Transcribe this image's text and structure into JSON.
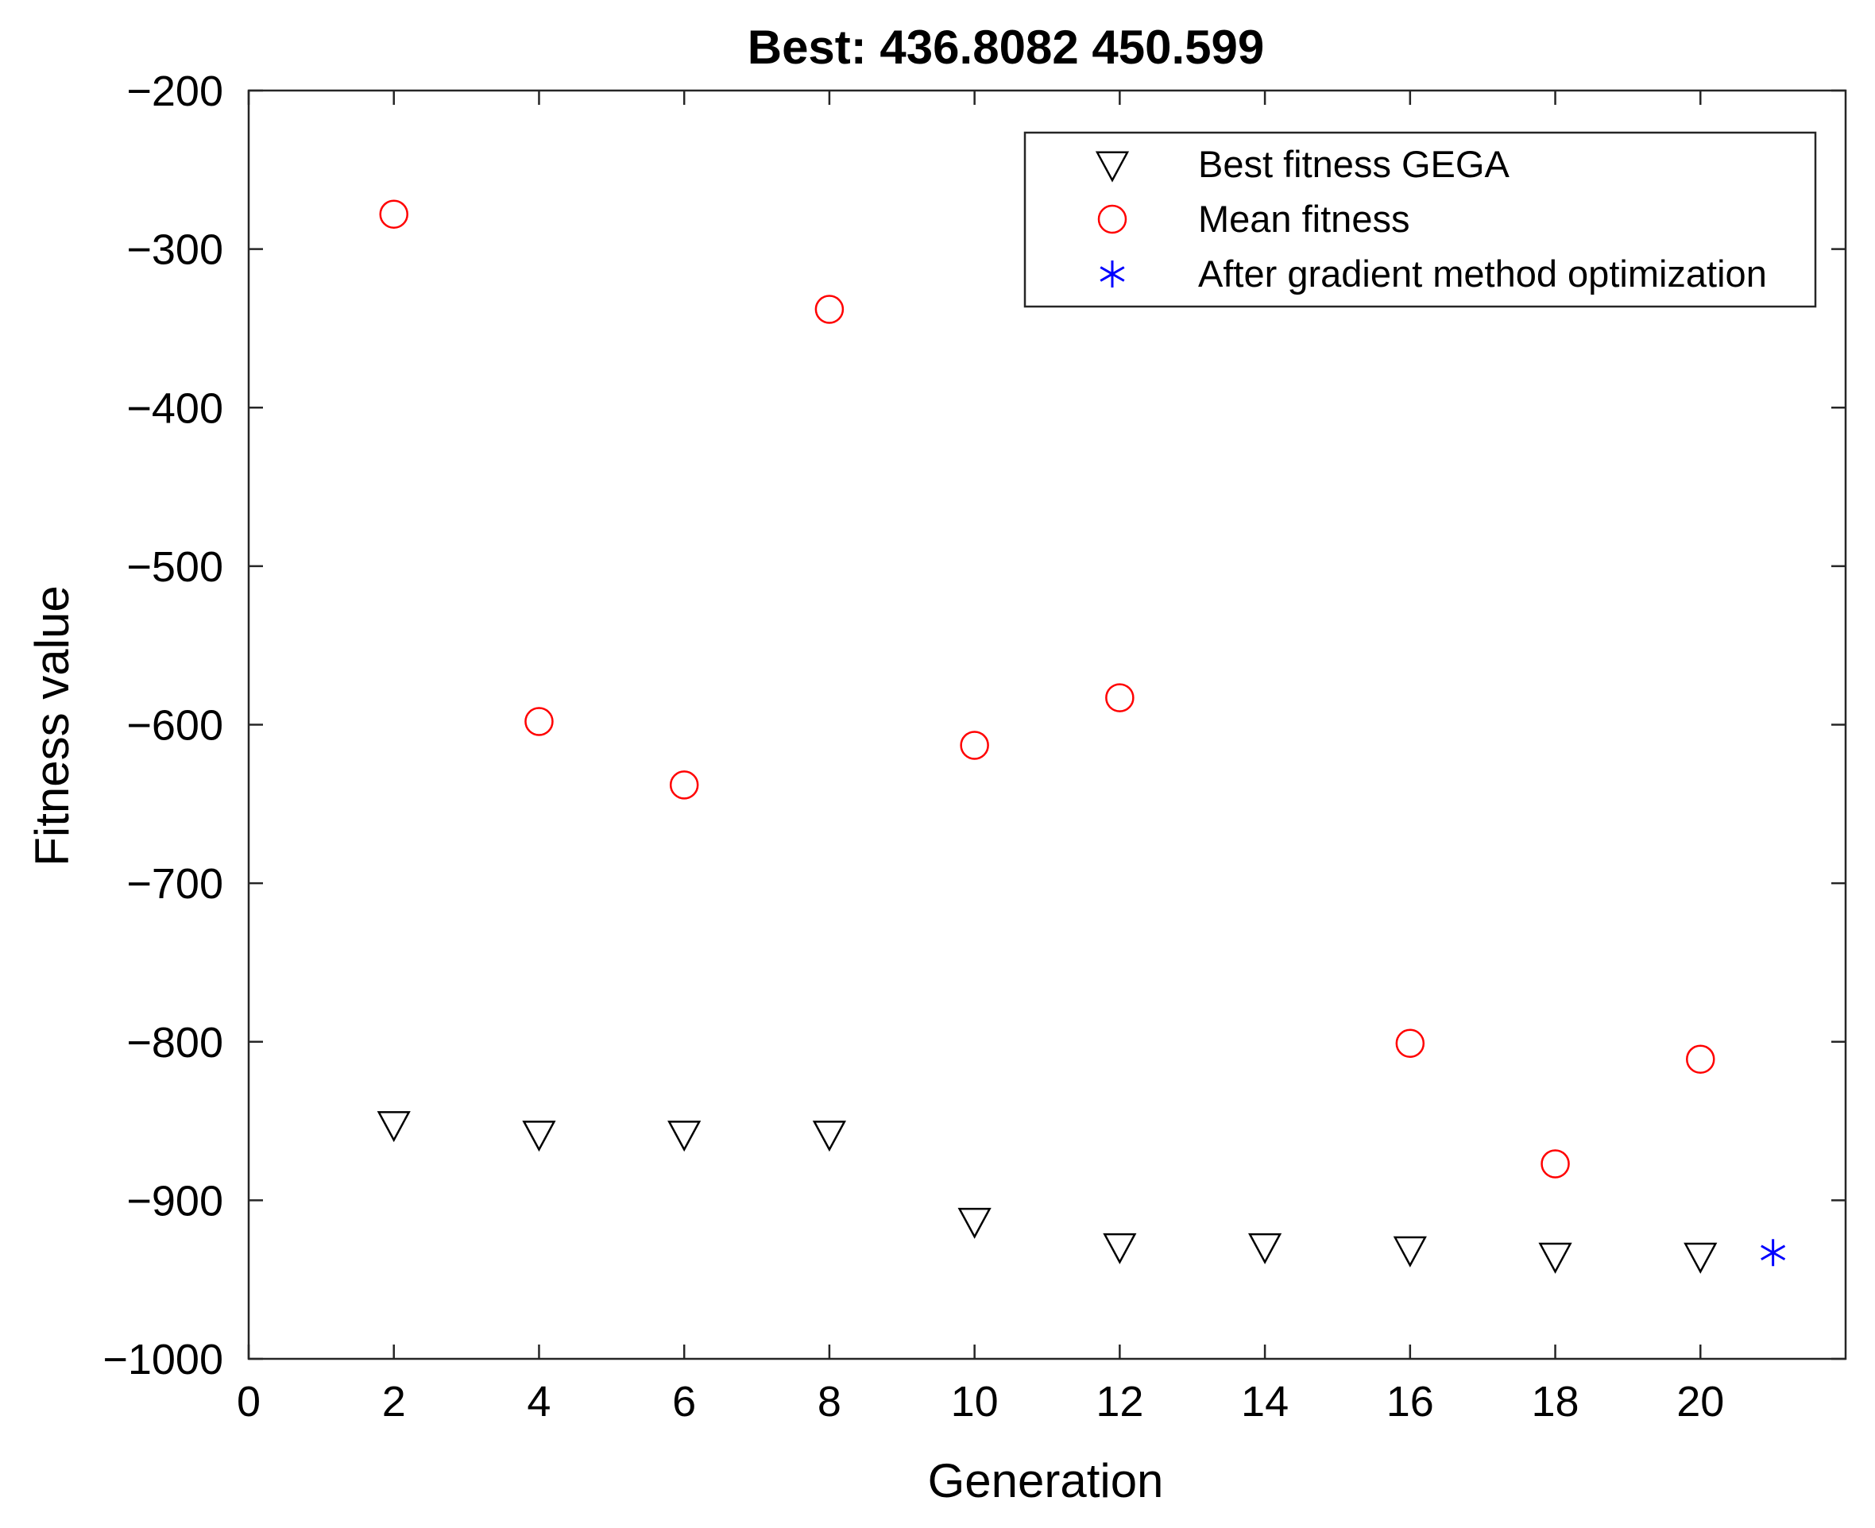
{
  "chart_data": {
    "type": "scatter",
    "title": "Best: 436.8082 450.599",
    "xlabel": "Generation",
    "ylabel": "Fitness value",
    "xlim": [
      0,
      22
    ],
    "ylim": [
      -1000,
      -200
    ],
    "xticks": [
      0,
      2,
      4,
      6,
      8,
      10,
      12,
      14,
      16,
      18,
      20
    ],
    "yticks": [
      -200,
      -300,
      -400,
      -500,
      -600,
      -700,
      -800,
      -900,
      -1000
    ],
    "xtick_labels": [
      "0",
      "2",
      "4",
      "6",
      "8",
      "10",
      "12",
      "14",
      "16",
      "18",
      "20"
    ],
    "ytick_labels": [
      "−200",
      "−300",
      "−400",
      "−500",
      "−600",
      "−700",
      "−800",
      "−900",
      "−1000"
    ],
    "grid": false,
    "legend_position": "top-right",
    "series": [
      {
        "name": "Best fitness GEGA",
        "marker": "triangle-down",
        "color": "#000000",
        "x": [
          2,
          4,
          6,
          8,
          10,
          12,
          14,
          16,
          18,
          20
        ],
        "y": [
          -852,
          -858,
          -858,
          -858,
          -913,
          -929,
          -929,
          -931,
          -935,
          -935
        ]
      },
      {
        "name": "Mean fitness",
        "marker": "circle",
        "color": "#ff0000",
        "x": [
          2,
          4,
          6,
          8,
          10,
          12,
          16,
          18,
          20
        ],
        "y": [
          -278,
          -598,
          -638,
          -338,
          -613,
          -583,
          -801,
          -877,
          -811
        ]
      },
      {
        "name": "After gradient method optimization",
        "marker": "asterisk",
        "color": "#0000ff",
        "x": [
          21
        ],
        "y": [
          -933
        ]
      }
    ]
  }
}
